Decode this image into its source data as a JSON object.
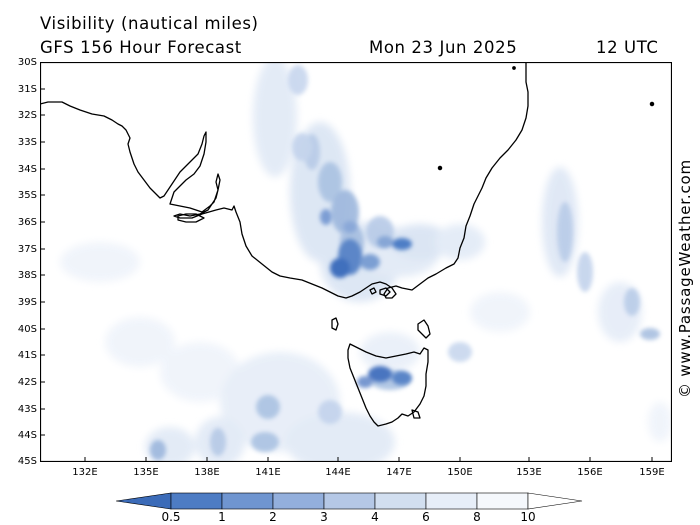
{
  "header": {
    "title": "Visibility (nautical miles)",
    "subtitle": "GFS 156 Hour Forecast",
    "date": "Mon 23 Jun 2025",
    "time": "12 UTC"
  },
  "credit": "© www.PassageWeather.com",
  "map": {
    "lat_labels": [
      "30S",
      "31S",
      "32S",
      "33S",
      "34S",
      "35S",
      "36S",
      "37S",
      "38S",
      "39S",
      "40S",
      "41S",
      "42S",
      "43S",
      "44S",
      "45S"
    ],
    "lon_labels": [
      "132E",
      "135E",
      "138E",
      "141E",
      "144E",
      "147E",
      "150E",
      "153E",
      "156E",
      "159E"
    ],
    "lat_range": [
      -30,
      -45
    ],
    "lon_range": [
      129.5,
      160.5
    ],
    "coastline_color": "#000000",
    "grid": false
  },
  "legend": {
    "labels": [
      "0.5",
      "1",
      "2",
      "3",
      "4",
      "6",
      "8",
      "10"
    ],
    "colors": [
      "#3b6bb8",
      "#4d7cc4",
      "#6f95d0",
      "#93afdc",
      "#b5c8e6",
      "#d2dff0",
      "#e7eef8",
      "#ffffff"
    ]
  }
}
